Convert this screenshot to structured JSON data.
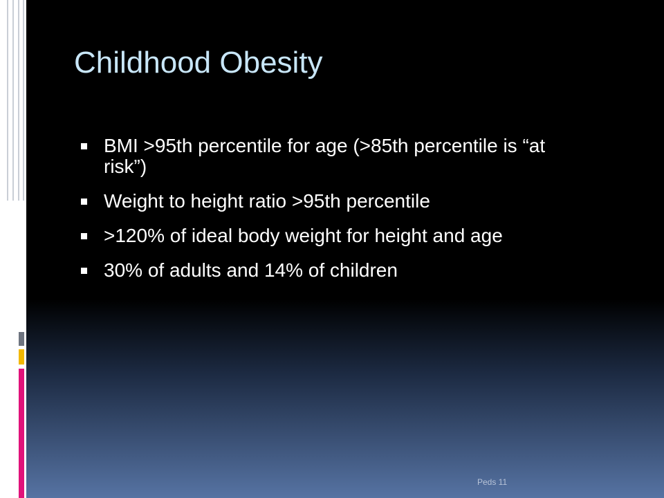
{
  "title": "Childhood Obesity",
  "bullets": [
    "BMI >95th percentile for age (>85th percentile is “at risk”)",
    "Weight to height ratio >95th  percentile",
    ">120% of ideal body weight for height and age",
    "30% of adults and 14% of children"
  ],
  "footer": "Peds 11"
}
